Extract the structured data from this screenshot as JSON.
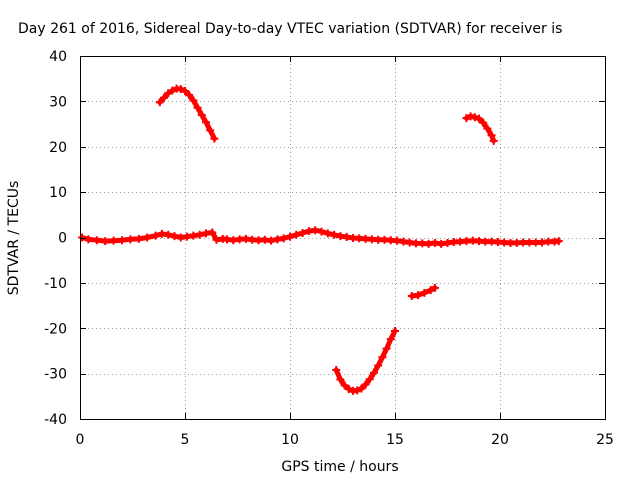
{
  "chart_data": {
    "type": "scatter",
    "title": "Day 261 of 2016, Sidereal Day-to-day VTEC variation (SDTVAR) for receiver is",
    "xlabel": "GPS time / hours",
    "ylabel": "SDTVAR / TECUs",
    "xlim": [
      0,
      25
    ],
    "ylim": [
      -40,
      40
    ],
    "xticks": [
      0,
      5,
      10,
      15,
      20,
      25
    ],
    "yticks": [
      -40,
      -30,
      -20,
      -10,
      0,
      10,
      20,
      30,
      40
    ],
    "grid": true,
    "marker_color": "#ff0000",
    "series": [
      {
        "x": [
          0.1,
          0.4,
          0.8,
          1.2,
          1.6,
          2.0,
          2.4,
          2.8,
          3.2,
          3.6,
          3.9,
          4.2,
          4.5,
          4.8,
          5.1,
          5.4,
          5.7,
          6.0,
          6.3,
          6.5,
          6.8,
          7.0,
          7.3,
          7.6,
          7.9,
          8.2,
          8.5,
          8.8,
          9.1,
          9.4,
          9.7,
          10.0,
          10.3,
          10.6,
          10.9,
          11.2,
          11.5,
          11.8,
          12.1,
          12.4,
          12.7,
          13.0,
          13.3,
          13.6,
          13.9,
          14.2,
          14.5,
          14.8,
          15.1,
          15.4,
          15.7,
          16.0,
          16.3,
          16.6,
          16.9,
          17.2,
          17.5,
          17.8,
          18.1,
          18.4,
          18.7,
          19.0,
          19.3,
          19.6,
          19.9,
          20.2,
          20.5,
          20.8,
          21.1,
          21.4,
          21.7,
          22.0,
          22.3,
          22.6,
          22.8
        ],
        "y": [
          0,
          -0.4,
          -0.6,
          -0.8,
          -0.7,
          -0.6,
          -0.4,
          -0.3,
          0,
          0.4,
          0.8,
          0.6,
          0.3,
          0,
          0.2,
          0.4,
          0.6,
          0.9,
          1.1,
          -0.5,
          -0.3,
          -0.4,
          -0.6,
          -0.4,
          -0.3,
          -0.5,
          -0.6,
          -0.5,
          -0.7,
          -0.4,
          -0.2,
          0.2,
          0.6,
          1.0,
          1.4,
          1.6,
          1.3,
          0.9,
          0.6,
          0.3,
          0.1,
          -0.1,
          -0.2,
          -0.3,
          -0.4,
          -0.5,
          -0.5,
          -0.6,
          -0.7,
          -0.9,
          -1.1,
          -1.3,
          -1.3,
          -1.4,
          -1.2,
          -1.4,
          -1.2,
          -1.0,
          -0.9,
          -0.8,
          -0.7,
          -0.8,
          -0.9,
          -0.9,
          -1.0,
          -1.1,
          -1.2,
          -1.2,
          -1.1,
          -1.1,
          -1.1,
          -1.1,
          -0.9,
          -0.9,
          -0.8
        ]
      },
      {
        "x": [
          3.8,
          4.0,
          4.2,
          4.4,
          4.6,
          4.8,
          5.0,
          5.2,
          5.4,
          5.6,
          5.8,
          6.0,
          6.2,
          6.4
        ],
        "y": [
          29.8,
          30.8,
          31.8,
          32.4,
          32.8,
          32.7,
          32.3,
          31.4,
          30.2,
          28.6,
          27.0,
          25.4,
          23.6,
          21.8
        ]
      },
      {
        "x": [
          18.4,
          18.6,
          18.8,
          19.0,
          19.2,
          19.4,
          19.6,
          19.7
        ],
        "y": [
          26.3,
          26.7,
          26.5,
          26.2,
          25.3,
          24.0,
          22.5,
          21.3
        ]
      },
      {
        "x": [
          12.2,
          12.4,
          12.6,
          12.8,
          13.0,
          13.2,
          13.4,
          13.6,
          13.8,
          14.0,
          14.2,
          14.4,
          14.6,
          14.8,
          15.0
        ],
        "y": [
          -29.2,
          -31.3,
          -32.6,
          -33.4,
          -33.8,
          -33.7,
          -33.3,
          -32.4,
          -31.2,
          -29.8,
          -28.2,
          -26.4,
          -24.5,
          -22.4,
          -20.6
        ]
      },
      {
        "x": [
          15.8,
          16.1,
          16.4,
          16.7,
          16.9
        ],
        "y": [
          -12.9,
          -12.7,
          -12.2,
          -11.6,
          -11.1
        ]
      }
    ]
  }
}
